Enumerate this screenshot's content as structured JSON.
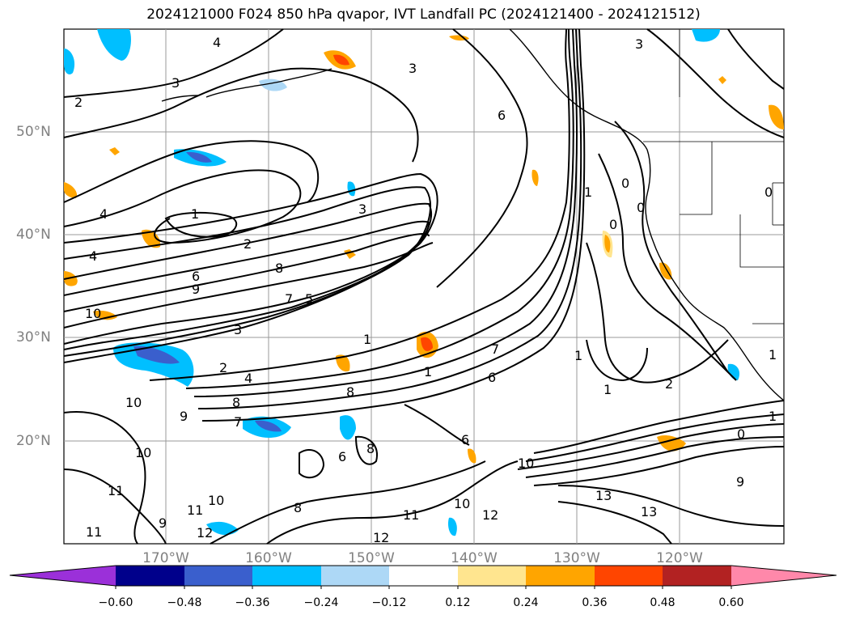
{
  "title": "2024121000 F024 850 hPa qvapor, IVT Landfall PC (2024121400 - 2024121512)",
  "map": {
    "lat_labels": [
      "50°N",
      "40°N",
      "30°N",
      "20°N"
    ],
    "lon_labels": [
      "170°W",
      "160°W",
      "150°W",
      "140°W",
      "130°W",
      "120°W"
    ],
    "gridlines": true,
    "contour_labels": [
      "4",
      "3",
      "3",
      "2",
      "3",
      "6",
      "4",
      "1",
      "2",
      "3",
      "8",
      "6",
      "9",
      "7",
      "5",
      "10",
      "3",
      "4",
      "2",
      "8",
      "10",
      "1",
      "1",
      "7",
      "6",
      "1",
      "2",
      "0",
      "0",
      "0",
      "0",
      "1",
      "1",
      "10",
      "9",
      "6",
      "7",
      "8",
      "9",
      "8",
      "10",
      "6",
      "11",
      "11",
      "10",
      "8",
      "13",
      "13",
      "12",
      "11",
      "10",
      "12",
      "9",
      "0",
      "1",
      "1",
      "11",
      "12",
      "4"
    ]
  },
  "colorbar": {
    "colors": [
      "#9b30d9",
      "#00008b",
      "#3a5fcd",
      "#00bfff",
      "#add8f6",
      "#ffffff",
      "#ffe58f",
      "#ffa500",
      "#ff4500",
      "#b22222",
      "#ff88aa"
    ],
    "ticks": [
      "−0.60",
      "−0.48",
      "−0.36",
      "−0.24",
      "−0.12",
      "0.12",
      "0.24",
      "0.36",
      "0.48",
      "0.60"
    ]
  }
}
